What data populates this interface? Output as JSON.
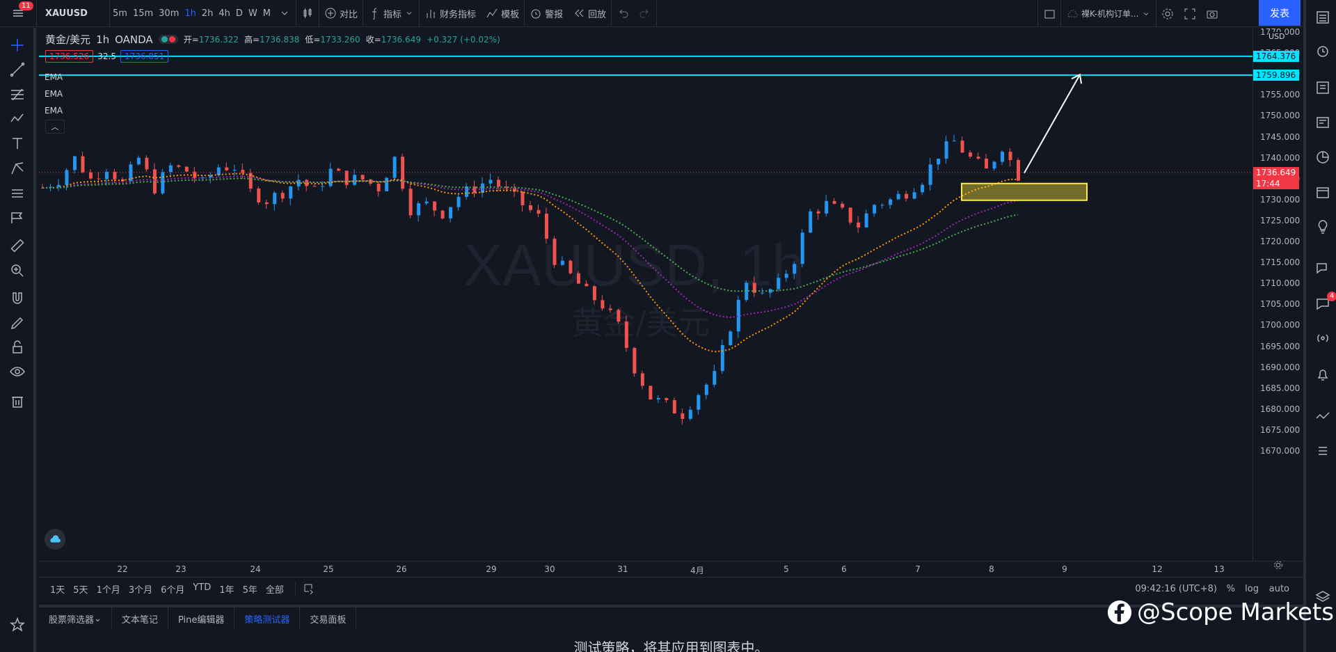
{
  "topbar": {
    "menu_badge": "11",
    "symbol": "XAUUSD",
    "intervals": [
      "5m",
      "15m",
      "30m",
      "1h",
      "2h",
      "4h",
      "D",
      "W",
      "M"
    ],
    "active_interval": "1h",
    "compare_label": "对比",
    "indicators_label": "指标",
    "financials_label": "财务指标",
    "templates_label": "模板",
    "alert_label": "警报",
    "replay_label": "回放",
    "layout_name": "裸K-机构订单...",
    "publish_label": "发表"
  },
  "legend": {
    "symbol_name": "黄金/美元",
    "interval": "1h",
    "broker": "OANDA",
    "open_label": "开=",
    "open": "1736.322",
    "high_label": "高=",
    "high": "1736.838",
    "low_label": "低=",
    "low": "1733.260",
    "close_label": "收=",
    "close": "1736.649",
    "change": "+0.327 (+0.02%)",
    "bid": "1736.526",
    "spread": "32.5",
    "ask": "1736.851",
    "ema_labels": [
      "EMA",
      "EMA",
      "EMA"
    ]
  },
  "chart_watermark": {
    "symbol_line": "XAUUSD, 1h",
    "name_line": "黄金/美元"
  },
  "chart_data": {
    "type": "candlestick",
    "y_axis_ticks": [
      "1770.000",
      "1765.000",
      "1760.000",
      "1755.000",
      "1750.000",
      "1745.000",
      "1740.000",
      "1735.000",
      "1730.000",
      "1725.000",
      "1720.000",
      "1715.000",
      "1710.000",
      "1705.000",
      "1700.000",
      "1695.000",
      "1690.000",
      "1685.000",
      "1680.000",
      "1675.000",
      "1670.000"
    ],
    "ylim": [
      1670,
      1771
    ],
    "x_axis_ticks": [
      "22",
      "23",
      "24",
      "25",
      "26",
      "29",
      "30",
      "31",
      "4月",
      "5",
      "6",
      "7",
      "8",
      "9",
      "12",
      "13"
    ],
    "close_path": [
      [
        0,
        1733
      ],
      [
        2,
        1735
      ],
      [
        4,
        1740
      ],
      [
        6,
        1735
      ],
      [
        8,
        1738
      ],
      [
        10,
        1734
      ],
      [
        12,
        1740
      ],
      [
        14,
        1733
      ],
      [
        16,
        1738
      ],
      [
        18,
        1737
      ],
      [
        20,
        1734
      ],
      [
        22,
        1738
      ],
      [
        24,
        1738
      ],
      [
        26,
        1732
      ],
      [
        28,
        1730
      ],
      [
        30,
        1732
      ],
      [
        32,
        1735
      ],
      [
        34,
        1732
      ],
      [
        36,
        1737
      ],
      [
        38,
        1735
      ],
      [
        40,
        1735
      ],
      [
        42,
        1733
      ],
      [
        44,
        1740
      ],
      [
        46,
        1728
      ],
      [
        48,
        1729
      ],
      [
        50,
        1727
      ],
      [
        52,
        1731
      ],
      [
        54,
        1733
      ],
      [
        56,
        1735
      ],
      [
        58,
        1732
      ],
      [
        60,
        1729
      ],
      [
        62,
        1726
      ],
      [
        64,
        1716
      ],
      [
        66,
        1712
      ],
      [
        68,
        1708
      ],
      [
        70,
        1705
      ],
      [
        72,
        1700
      ],
      [
        74,
        1690
      ],
      [
        76,
        1683
      ],
      [
        78,
        1681
      ],
      [
        80,
        1679
      ],
      [
        82,
        1684
      ],
      [
        84,
        1688
      ],
      [
        86,
        1700
      ],
      [
        88,
        1711
      ],
      [
        90,
        1707
      ],
      [
        92,
        1710
      ],
      [
        94,
        1716
      ],
      [
        96,
        1727
      ],
      [
        98,
        1729
      ],
      [
        100,
        1727
      ],
      [
        102,
        1724
      ],
      [
        104,
        1729
      ],
      [
        106,
        1730
      ],
      [
        108,
        1732
      ],
      [
        110,
        1735
      ],
      [
        112,
        1741
      ],
      [
        114,
        1744
      ],
      [
        116,
        1740
      ],
      [
        118,
        1737
      ],
      [
        120,
        1743
      ],
      [
        122,
        1736
      ]
    ],
    "ema_series": [
      {
        "color": "#ff9800",
        "style": "dotted"
      },
      {
        "color": "#9c27b0",
        "style": "dotted"
      },
      {
        "color": "#4caf50",
        "style": "dotted"
      }
    ],
    "horizontal_lines": [
      {
        "price": "1764.376",
        "color": "#00e5ff"
      },
      {
        "price": "1759.896",
        "color": "#00e5ff"
      }
    ],
    "zone": {
      "y_top": 1734,
      "y_bottom": 1730,
      "color": "#ffeb3b"
    },
    "arrow": {
      "y_start": 1736.5,
      "y_end": 1760
    },
    "last_price": "1736.649",
    "countdown": "17:44"
  },
  "price_scale": {
    "currency": "USD"
  },
  "bottom_toolbar": {
    "ranges": [
      "1天",
      "5天",
      "1个月",
      "3个月",
      "6个月",
      "YTD",
      "1年",
      "5年",
      "全部"
    ],
    "clock": "09:42:16 (UTC+8)",
    "percent_label": "%",
    "log_label": "log",
    "auto_label": "auto"
  },
  "bottom_tabs": [
    {
      "label": "股票筛选器",
      "active": false
    },
    {
      "label": "文本笔记",
      "active": false
    },
    {
      "label": "Pine编辑器",
      "active": false
    },
    {
      "label": "策略测试器",
      "active": true
    },
    {
      "label": "交易面板",
      "active": false
    }
  ],
  "tester_message": "测试策略，将其应用到图表中。",
  "brand_watermark": "@Scope Markets",
  "right_bar": {
    "chat_badge": "4"
  }
}
